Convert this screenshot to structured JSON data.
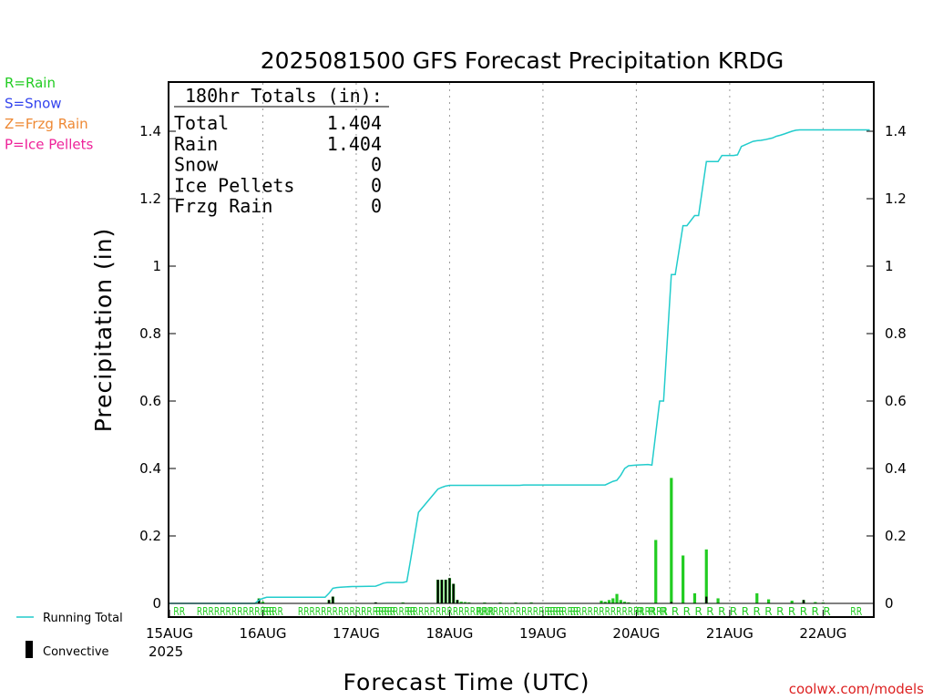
{
  "chart_data": {
    "type": "bar",
    "title": "2025081500 GFS Forecast Precipitation KRDG",
    "xlabel": "Forecast Time (UTC)",
    "ylabel": "Precipitation (in)",
    "ylim": [
      -0.03,
      1.55
    ],
    "yticks": [
      0,
      0.2,
      0.4,
      0.6,
      0.8,
      1,
      1.2,
      1.4
    ],
    "ytick_labels": [
      "0",
      "0.2",
      "0.4",
      "0.6",
      "0.8",
      "1",
      "1.2",
      "1.4"
    ],
    "xlim_hours": [
      0,
      180
    ],
    "x_ticks": [
      {
        "hour": 0,
        "label": "15AUG"
      },
      {
        "hour": 24,
        "label": "16AUG"
      },
      {
        "hour": 48,
        "label": "17AUG"
      },
      {
        "hour": 72,
        "label": "18AUG"
      },
      {
        "hour": 96,
        "label": "19AUG"
      },
      {
        "hour": 120,
        "label": "20AUG"
      },
      {
        "hour": 144,
        "label": "21AUG"
      },
      {
        "hour": 168,
        "label": "22AUG"
      }
    ],
    "year_label": "2025",
    "grid": true,
    "legend_precip_types": [
      {
        "label": "R=Rain",
        "color": "#22cc22"
      },
      {
        "label": "S=Snow",
        "color": "#3344ee"
      },
      {
        "label": "Z=Frzg Rain",
        "color": "#ee8833"
      },
      {
        "label": "P=Ice Pellets",
        "color": "#ee2299"
      }
    ],
    "legend_series": [
      {
        "label": "Running Total",
        "color": "#22cccc"
      },
      {
        "label": "Convective",
        "color": "#000000"
      }
    ],
    "totals": {
      "header": "180hr Totals (in):",
      "rows": [
        {
          "label": "Total",
          "value": "1.404"
        },
        {
          "label": "Rain",
          "value": "1.404"
        },
        {
          "label": "Snow",
          "value": "0"
        },
        {
          "label": "Ice Pellets",
          "value": "0"
        },
        {
          "label": "Frzg Rain",
          "value": "0"
        }
      ]
    },
    "running_total": {
      "name": "Running Total",
      "color": "#22cccc",
      "x": [
        0,
        22,
        23,
        24,
        25,
        40,
        41,
        42,
        43,
        44,
        47,
        48,
        53,
        54,
        55,
        56,
        57,
        60,
        61,
        62,
        63,
        64,
        69,
        70,
        70.5,
        71,
        71.5,
        72,
        73,
        90,
        91,
        112,
        114,
        115,
        116,
        117,
        118,
        120,
        123,
        124,
        126,
        127,
        129,
        130,
        132,
        133,
        135,
        136,
        138,
        141,
        142,
        145,
        146,
        147,
        148,
        150,
        151,
        152,
        153,
        155,
        156,
        157,
        158,
        159,
        160,
        161,
        162,
        165,
        166,
        168,
        180
      ],
      "y": [
        0,
        0,
        0.01,
        0.015,
        0.018,
        0.018,
        0.03,
        0.045,
        0.047,
        0.048,
        0.05,
        0.05,
        0.051,
        0.055,
        0.06,
        0.062,
        0.062,
        0.062,
        0.065,
        0.13,
        0.2,
        0.27,
        0.339,
        0.344,
        0.346,
        0.348,
        0.349,
        0.35,
        0.35,
        0.35,
        0.351,
        0.351,
        0.362,
        0.365,
        0.38,
        0.4,
        0.408,
        0.41,
        0.412,
        0.41,
        0.6,
        0.6,
        0.975,
        0.975,
        1.12,
        1.12,
        1.15,
        1.15,
        1.31,
        1.31,
        1.328,
        1.328,
        1.33,
        1.355,
        1.36,
        1.37,
        1.372,
        1.373,
        1.375,
        1.38,
        1.385,
        1.388,
        1.392,
        1.396,
        1.4,
        1.403,
        1.404,
        1.404,
        1.404,
        1.404,
        1.404
      ]
    },
    "series": [
      {
        "name": "Rain",
        "color": "#22cc22",
        "x": [
          23,
          24,
          41,
          42,
          53,
          60,
          69,
          70,
          71,
          72,
          73,
          74,
          75,
          76,
          77,
          81,
          85,
          89,
          93,
          111,
          112,
          113,
          114,
          115,
          116,
          117,
          118,
          125,
          129,
          132,
          135,
          138,
          141,
          151,
          154,
          160,
          163,
          166,
          168
        ],
        "values": [
          0.015,
          0.005,
          0.01,
          0.02,
          0.003,
          0.003,
          0.07,
          0.07,
          0.07,
          0.075,
          0.058,
          0.01,
          0.005,
          0.004,
          0.003,
          0.002,
          0.002,
          0.002,
          0.003,
          0.008,
          0.005,
          0.01,
          0.015,
          0.028,
          0.01,
          0.005,
          0.003,
          0.188,
          0.372,
          0.142,
          0.03,
          0.16,
          0.015,
          0.03,
          0.012,
          0.008,
          0.01,
          0.004,
          0.002
        ]
      },
      {
        "name": "Convective",
        "color": "#000000",
        "x": [
          23,
          41,
          42,
          53,
          69,
          70,
          71,
          72,
          73,
          74,
          129,
          138,
          163
        ],
        "values": [
          0.013,
          0.01,
          0.02,
          0.003,
          0.07,
          0.07,
          0.07,
          0.075,
          0.058,
          0.01,
          0.004,
          0.02,
          0.01
        ]
      }
    ],
    "precip_type_marks": [
      {
        "label": "RR",
        "hour": 1
      },
      {
        "label": "RRRRRRRRRRRRRRR",
        "hour": 7
      },
      {
        "label": "RR",
        "hour": 24
      },
      {
        "label": "RRRRRRRRRRRRRRRRR",
        "hour": 33
      },
      {
        "label": "RRRRRRR",
        "hour": 53
      },
      {
        "label": "RRRRRRRRRRRRRRRRR",
        "hour": 61
      },
      {
        "label": "RRR",
        "hour": 79
      },
      {
        "label": "RRRRRRRRRRRRR",
        "hour": 86
      },
      {
        "label": "RRR",
        "hour": 97
      },
      {
        "label": "RRRRRRRRRRRRRRRRR",
        "hour": 103
      },
      {
        "label": "R",
        "hour": 120
      },
      {
        "label": "R",
        "hour": 123
      },
      {
        "label": "R",
        "hour": 126
      },
      {
        "label": "R",
        "hour": 129
      },
      {
        "label": "R",
        "hour": 132
      },
      {
        "label": "R",
        "hour": 135
      },
      {
        "label": "R",
        "hour": 138
      },
      {
        "label": "R",
        "hour": 141
      },
      {
        "label": "R",
        "hour": 144
      },
      {
        "label": "R",
        "hour": 147
      },
      {
        "label": "R",
        "hour": 150
      },
      {
        "label": "R",
        "hour": 153
      },
      {
        "label": "R",
        "hour": 156
      },
      {
        "label": "R",
        "hour": 159
      },
      {
        "label": "R",
        "hour": 162
      },
      {
        "label": "R",
        "hour": 165
      },
      {
        "label": "R",
        "hour": 168
      },
      {
        "label": "RR",
        "hour": 175
      }
    ]
  },
  "credit": "coolwx.com/models"
}
